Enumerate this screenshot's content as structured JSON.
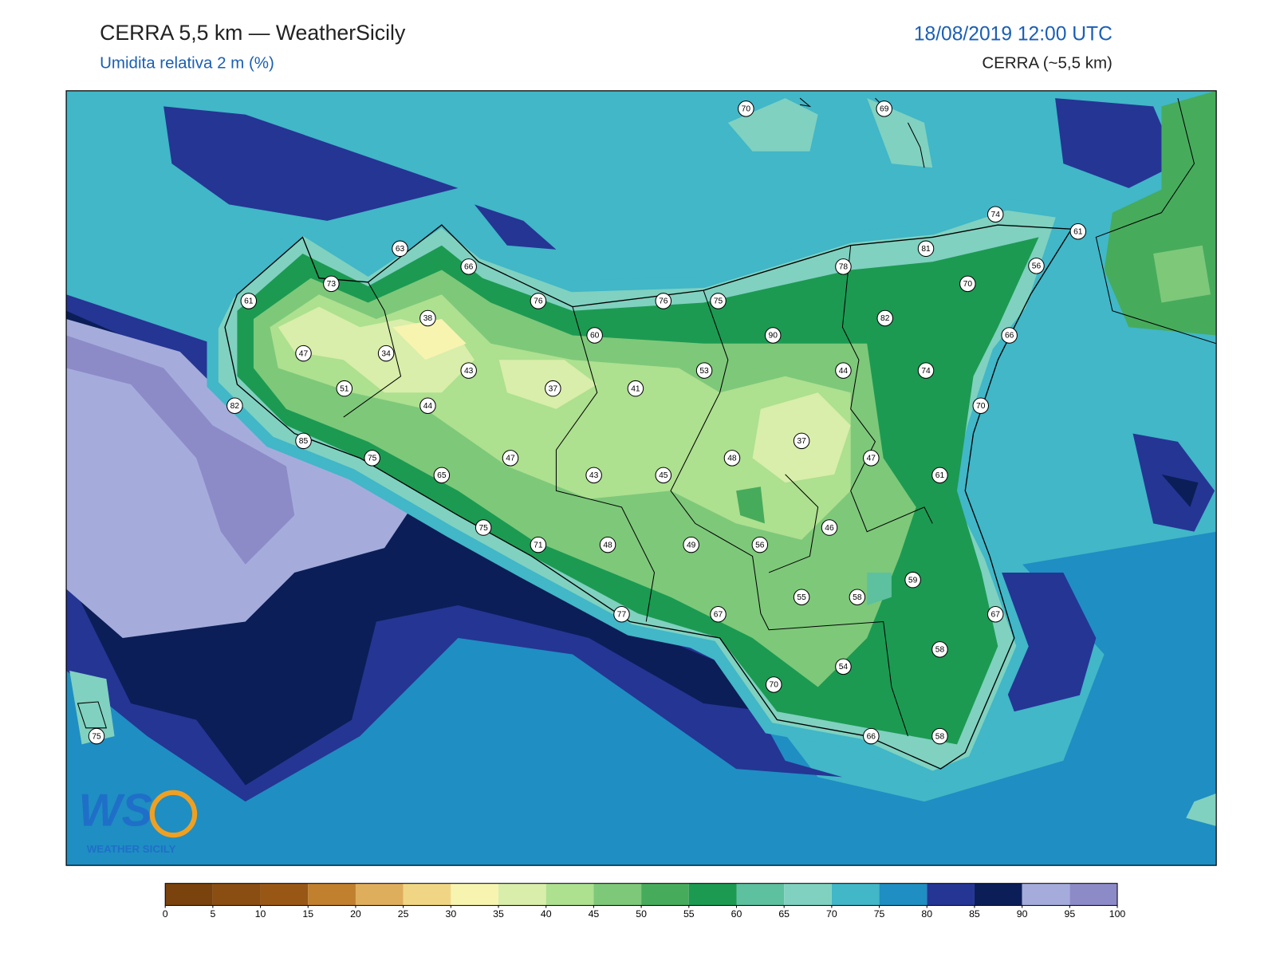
{
  "header": {
    "title": "CERRA 5,5 km — WeatherSicily",
    "subtitle": "Umidita relativa 2 m (%)",
    "datetime": "18/08/2019 12:00 UTC",
    "model": "CERRA (~5,5 km)"
  },
  "map": {
    "stations": [
      {
        "value": 70
      },
      {
        "value": 69
      },
      {
        "value": 74
      },
      {
        "value": 63
      },
      {
        "value": 66
      },
      {
        "value": 81
      },
      {
        "value": 61
      },
      {
        "value": 56
      },
      {
        "value": 73
      },
      {
        "value": 78
      },
      {
        "value": 70
      },
      {
        "value": 61
      },
      {
        "value": 76
      },
      {
        "value": 76
      },
      {
        "value": 75
      },
      {
        "value": 82
      },
      {
        "value": 38
      },
      {
        "value": 60
      },
      {
        "value": 90
      },
      {
        "value": 66
      },
      {
        "value": 47
      },
      {
        "value": 34
      },
      {
        "value": 43
      },
      {
        "value": 53
      },
      {
        "value": 44
      },
      {
        "value": 74
      },
      {
        "value": 37
      },
      {
        "value": 41
      },
      {
        "value": 51
      },
      {
        "value": 44
      },
      {
        "value": 82
      },
      {
        "value": 70
      },
      {
        "value": 85
      },
      {
        "value": 37
      },
      {
        "value": 75
      },
      {
        "value": 47
      },
      {
        "value": 48
      },
      {
        "value": 47
      },
      {
        "value": 65
      },
      {
        "value": 43
      },
      {
        "value": 45
      },
      {
        "value": 61
      },
      {
        "value": 46
      },
      {
        "value": 75
      },
      {
        "value": 71
      },
      {
        "value": 48
      },
      {
        "value": 49
      },
      {
        "value": 56
      },
      {
        "value": 59
      },
      {
        "value": 55
      },
      {
        "value": 58
      },
      {
        "value": 67
      },
      {
        "value": 77
      },
      {
        "value": 67
      },
      {
        "value": 58
      },
      {
        "value": 54
      },
      {
        "value": 70
      },
      {
        "value": 66
      },
      {
        "value": 58
      },
      {
        "value": 75
      }
    ]
  },
  "logo": {
    "mark": "WS",
    "name": "WEATHER SICILY"
  },
  "colorbar": {
    "ticks": [
      0,
      5,
      10,
      15,
      20,
      25,
      30,
      35,
      40,
      45,
      50,
      55,
      60,
      65,
      70,
      75,
      80,
      85,
      90,
      95,
      100
    ],
    "colors": [
      "#7a420c",
      "#8a4d12",
      "#995716",
      "#c0802e",
      "#dfae5c",
      "#f0d684",
      "#f7f4b0",
      "#d8eeaa",
      "#ade08f",
      "#7ec87a",
      "#47ab5c",
      "#1c9a52",
      "#5dc09e",
      "#80d1c0",
      "#41b7c8",
      "#1f8ec3",
      "#253594",
      "#0b1e58",
      "#a5acdb",
      "#8c8bc8"
    ]
  }
}
